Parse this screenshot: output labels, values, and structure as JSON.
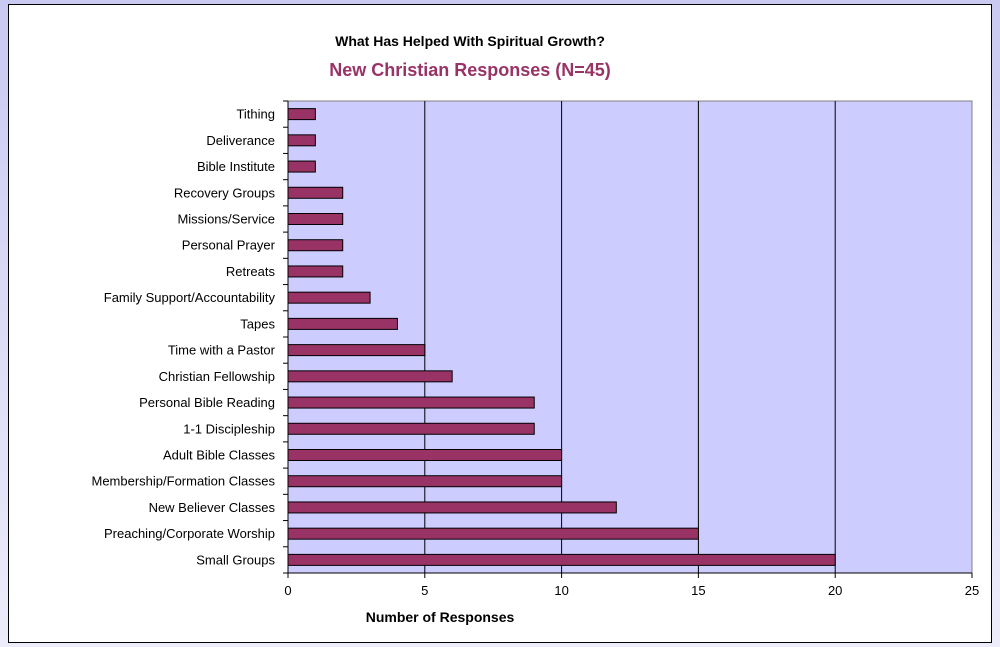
{
  "chart_data": {
    "type": "bar",
    "orientation": "horizontal",
    "title": "What Has Helped With Spiritual Growth?",
    "subtitle": "New Christian Responses (N=45)",
    "xlabel": "Number of Responses",
    "ylabel": "",
    "categories": [
      "Tithing",
      "Deliverance",
      "Bible Institute",
      "Recovery Groups",
      "Missions/Service",
      "Personal Prayer",
      "Retreats",
      "Family Support/Accountability",
      "Tapes",
      "Time with a Pastor",
      "Christian Fellowship",
      "Personal Bible Reading",
      "1-1 Discipleship",
      "Adult Bible Classes",
      "Membership/Formation Classes",
      "New Believer Classes",
      "Preaching/Corporate Worship",
      "Small Groups"
    ],
    "values": [
      1,
      1,
      1,
      2,
      2,
      2,
      2,
      3,
      4,
      5,
      6,
      9,
      9,
      10,
      10,
      12,
      15,
      20
    ],
    "xlim": [
      0,
      25
    ],
    "xticks": [
      "0",
      "5",
      "10",
      "15",
      "20",
      "25"
    ],
    "grid": true,
    "legend": "none",
    "colors": {
      "bar": "#993366",
      "subtitle": "#993366",
      "plot_background": "#ccccff",
      "gridline": "#000000"
    }
  }
}
